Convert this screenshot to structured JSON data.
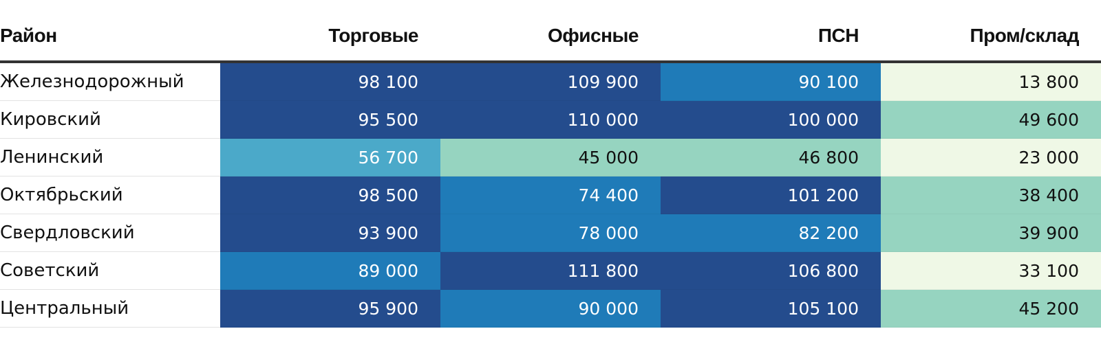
{
  "chart_data": {
    "type": "table",
    "columns": [
      "Район",
      "Торговые",
      "Офисные",
      "ПСН",
      "Пром/склад"
    ],
    "rows": [
      {
        "name": "Железнодорожный",
        "values": [
          "98 100",
          "109 900",
          "90 100",
          "13 800"
        ],
        "levels": [
          4,
          4,
          3,
          0
        ]
      },
      {
        "name": "Кировский",
        "values": [
          "95 500",
          "110 000",
          "100 000",
          "49 600"
        ],
        "levels": [
          4,
          4,
          4,
          1
        ]
      },
      {
        "name": "Ленинский",
        "values": [
          "56 700",
          "45 000",
          "46 800",
          "23 000"
        ],
        "levels": [
          2,
          1,
          1,
          0
        ]
      },
      {
        "name": "Октябрьский",
        "values": [
          "98 500",
          "74 400",
          "101 200",
          "38 400"
        ],
        "levels": [
          4,
          3,
          4,
          1
        ]
      },
      {
        "name": "Свердловский",
        "values": [
          "93 900",
          "78 000",
          "82 200",
          "39 900"
        ],
        "levels": [
          4,
          3,
          3,
          1
        ]
      },
      {
        "name": "Советский",
        "values": [
          "89 000",
          "111 800",
          "106 800",
          "33 100"
        ],
        "levels": [
          3,
          4,
          4,
          0
        ]
      },
      {
        "name": "Центральный",
        "values": [
          "95 900",
          "90 000",
          "105 100",
          "45 200"
        ],
        "levels": [
          4,
          3,
          4,
          1
        ]
      }
    ],
    "color_scale": [
      "#eff8e6",
      "#96d4c0",
      "#4ba9c9",
      "#1f7bb8",
      "#244c8d"
    ],
    "text_colors": [
      "#111111",
      "#111111",
      "#ffffff",
      "#ffffff",
      "#ffffff"
    ]
  }
}
